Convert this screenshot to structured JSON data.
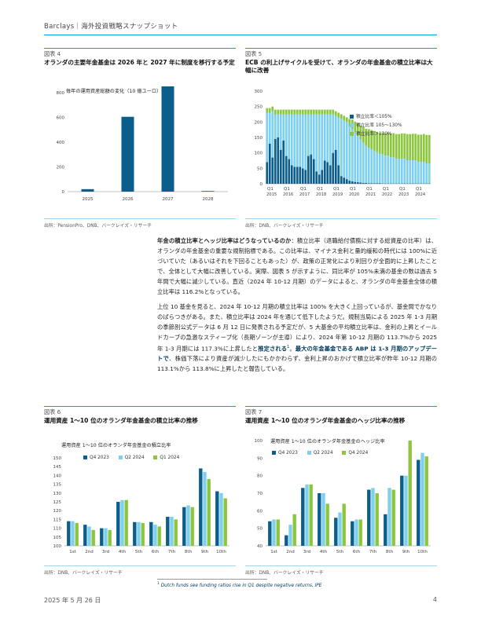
{
  "header": {
    "text": "Barclays｜海外投資戦略スナップショット"
  },
  "fig4": {
    "number": "図表 4",
    "title": "オランダの主要年金基金は 2026 年と 2027 年に制度を移行する予定",
    "source": "出所：PensionPro、DNB、バークレイズ・リサーチ"
  },
  "fig5": {
    "number": "図表 5",
    "title": "ECB の利上げサイクルを受けて、オランダの年金基金の積立比率は大幅に改善",
    "source": "出所：DNB、バークレイズ・リサーチ"
  },
  "fig6": {
    "number": "図表 6",
    "title": "運用資産 1～10 位のオランダ年金基金の積立比率の推移",
    "source": "出所：DNB、バークレイズ・リサーチ"
  },
  "fig7": {
    "number": "図表 7",
    "title": "運用資産 1～10 位のオランダ年金基金のヘッジ比率の推移",
    "source": "出所：DNB、バークレイズ・リサーチ"
  },
  "body": {
    "p1_bold": "年金の積立比率とヘッジ比率はどうなっているのか",
    "p1_rest": "：積立比率（退職給付債務に対する総資産の比率）は、オランダの年金基金の重要な規制指標である。この比率は、マイナス金利と量的緩和の時代には 100%に近づいていた（あるいはそれを下回ることもあった）が、政策の正常化により利回りが全面的に上昇したことで、全体として大幅に改善している。実際、図表 5 が示すように、同比率が 105%未満の基金の数は過去 5 年間で大幅に減少している。直近（2024 年 10-12 月期）のデータによると、オランダの年金基金全体の積立比率は 116.2%となっている。",
    "p2_a": "上位 10 基金を見ると、2024 年 10-12 月期の積立比率は 100% を大きく上回っているが、基金間でかなりのばらつきがある。また、積立比率は 2024 年を通じて低下したようだ。規制当局による 2025 年 1-3 月期の季節別公式データは 6 月 12 日に発表される予定だが、5 大基金の平均積立比率は、金利の上昇とイールドカーブの急激なスティープ化（長期ゾーンが主導）により、2024 年第 10-12 月期の 113.7%から 2025 年 1-3 月期には 117.3%に上昇したと",
    "p2_blue1": "推定される",
    "p2_sup": "1",
    "p2_mid": "。",
    "p2_blue2": "最大の年金基金である ABP は 1-3 月期のアップデートで",
    "p2_end": "、株価下落により資産が減少したにもかかわらず、金利上昇のおかげで積立比率が昨年 10-12 月期の 113.1%から 113.8%に上昇したと報告している。"
  },
  "footnote": {
    "num": "1",
    "text": "Dutch funds see funding ratios rise in Q1 despite negative returns, IPE"
  },
  "footer": {
    "date": "2025 年 5 月 26 日",
    "page": "4"
  },
  "colors": {
    "accent": "#00a0dd",
    "navy": "#00395d",
    "green": "#8cc63f",
    "lightblue": "#7fd0ee",
    "darkblue": "#0b5e8c"
  },
  "chart_data": [
    {
      "id": "fig4",
      "type": "bar",
      "title": "毎年の運用資産総額の変化（10 億ユーロ）",
      "categories": [
        "2025",
        "2026",
        "2027",
        "2028"
      ],
      "values": [
        20,
        605,
        855,
        5
      ],
      "ylim": [
        0,
        800
      ],
      "yticks": [
        0,
        200,
        400,
        600,
        800
      ],
      "grid": false
    },
    {
      "id": "fig5",
      "type": "bar",
      "stacked": true,
      "xtick_labels": [
        "Q1",
        "Q1",
        "Q1",
        "Q1",
        "Q1",
        "Q1",
        "Q1",
        "Q1",
        "Q1",
        "Q1"
      ],
      "xtick_years": [
        "2015",
        "2016",
        "2017",
        "2018",
        "2019",
        "2020",
        "2021",
        "2022",
        "2023",
        "2024"
      ],
      "ylim": [
        0,
        300
      ],
      "yticks": [
        0,
        50,
        100,
        150,
        200,
        250,
        300
      ],
      "legend_position": "top-right",
      "series": [
        {
          "name": "積立比率＜105%",
          "values": [
            70,
            130,
            85,
            145,
            150,
            110,
            140,
            90,
            80,
            60,
            55,
            55,
            55,
            50,
            45,
            90,
            95,
            80,
            40,
            30,
            45,
            75,
            70,
            60,
            100,
            110,
            60,
            25,
            20,
            15,
            10,
            8,
            6,
            5,
            4,
            3,
            3,
            2,
            2,
            2,
            2,
            2,
            1,
            1,
            1,
            1,
            1,
            1,
            1,
            1,
            1,
            1,
            1,
            1,
            1,
            1,
            1,
            1,
            1,
            1
          ]
        },
        {
          "name": "積立比率 105～130%",
          "values": [
            160,
            100,
            150,
            80,
            75,
            115,
            85,
            135,
            145,
            165,
            170,
            170,
            170,
            175,
            180,
            135,
            130,
            145,
            185,
            195,
            180,
            150,
            155,
            165,
            125,
            110,
            155,
            185,
            185,
            185,
            175,
            170,
            160,
            150,
            140,
            130,
            120,
            115,
            110,
            105,
            100,
            95,
            95,
            90,
            90,
            85,
            85,
            80,
            80,
            80,
            80,
            75,
            75,
            75,
            75,
            70,
            70,
            70,
            65,
            65
          ]
        },
        {
          "name": "積立比率＞130%",
          "values": [
            15,
            15,
            15,
            15,
            15,
            15,
            15,
            15,
            15,
            15,
            15,
            15,
            15,
            15,
            15,
            15,
            15,
            15,
            15,
            15,
            15,
            15,
            15,
            15,
            15,
            15,
            15,
            15,
            15,
            15,
            25,
            30,
            35,
            40,
            45,
            50,
            55,
            60,
            62,
            64,
            66,
            68,
            70,
            72,
            74,
            76,
            78,
            80,
            80,
            82,
            82,
            85,
            85,
            86,
            86,
            88,
            88,
            90,
            92,
            92
          ]
        }
      ]
    },
    {
      "id": "fig6",
      "type": "bar",
      "title": "運用資産 1～10 位のオランダ年金基金の積立比率",
      "categories": [
        "1st",
        "2nd",
        "3rd",
        "4th",
        "5th",
        "6th",
        "7th",
        "8th",
        "9th",
        "10th"
      ],
      "ylim": [
        100,
        150
      ],
      "yticks": [
        100,
        105,
        110,
        115,
        120,
        125,
        130,
        135,
        140,
        145,
        150
      ],
      "series": [
        {
          "name": "Q4 2023",
          "values": [
            114,
            112,
            110,
            125,
            113.5,
            113.5,
            116.5,
            122,
            144,
            131
          ]
        },
        {
          "name": "Q2 2024",
          "values": [
            114,
            111,
            110,
            126,
            113.5,
            112,
            116.5,
            123,
            142,
            130
          ]
        },
        {
          "name": "Q1 2024",
          "values": [
            113,
            109,
            109,
            126,
            113,
            111,
            115,
            122,
            138,
            127
          ]
        }
      ]
    },
    {
      "id": "fig7",
      "type": "bar",
      "title": "運用資産 1～10 位のオランダ年金基金のヘッジ比率",
      "categories": [
        "1st",
        "2nd",
        "3rd",
        "4th",
        "5th",
        "6th",
        "7th",
        "8th",
        "9th",
        "10th"
      ],
      "ylim": [
        40,
        100
      ],
      "yticks": [
        40,
        50,
        60,
        70,
        80,
        90,
        100
      ],
      "series": [
        {
          "name": "Q4 2023",
          "values": [
            54,
            46,
            73,
            70,
            56,
            54,
            72,
            58,
            80,
            89
          ]
        },
        {
          "name": "Q2 2024",
          "values": [
            55,
            52,
            75,
            70,
            59,
            55,
            73,
            73,
            80,
            93
          ]
        },
        {
          "name": "Q4 2024",
          "values": [
            55,
            58,
            75,
            64,
            64,
            55,
            70,
            72,
            100,
            91
          ]
        }
      ]
    }
  ]
}
